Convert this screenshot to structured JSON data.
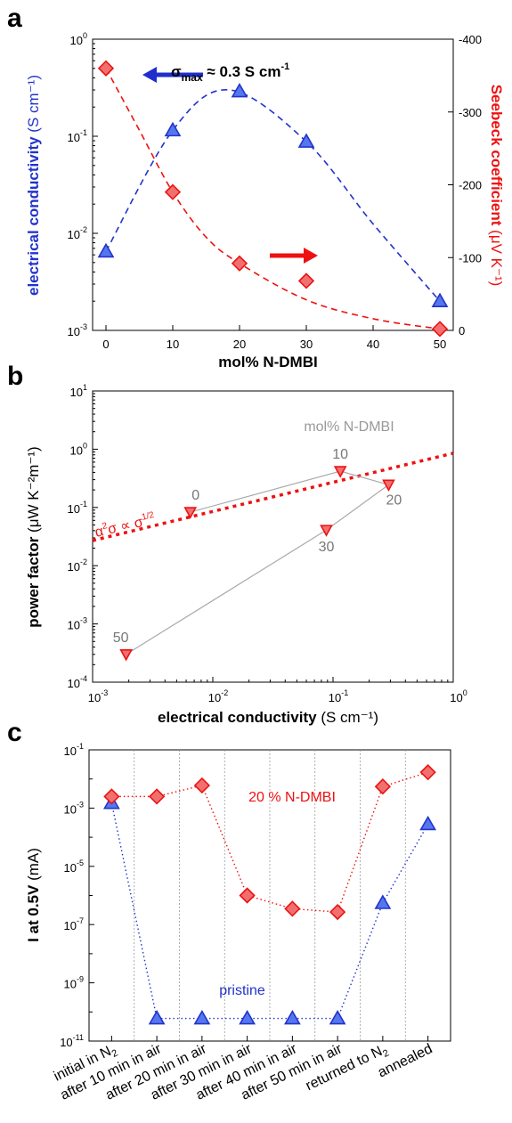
{
  "panels": {
    "a": "a",
    "b": "b",
    "c": "c"
  },
  "colors": {
    "blue": "#2233cc",
    "blue_fill": "#5577ee",
    "red": "#ee1111",
    "red_fill": "#f07070",
    "gray": "#999999",
    "grid": "#999999"
  },
  "chart_data": [
    {
      "type": "line",
      "panel": "a",
      "x": [
        0,
        10,
        20,
        30,
        50
      ],
      "xlabel": "mol% N-DMBI",
      "xlim": [
        -2,
        52
      ],
      "xticks": [
        "0",
        "10",
        "20",
        "30",
        "40",
        "50"
      ],
      "ylabel": {
        "bold": "electrical conductivity",
        "unit": "(S cm⁻¹)"
      },
      "ylim": [
        0.001,
        1
      ],
      "yscale": "log",
      "y2label": {
        "bold": "Seebeck coefficient",
        "unit": "(μV K⁻¹)"
      },
      "y2lim": [
        0,
        -400
      ],
      "y2ticks": [
        "0",
        "-100",
        "-200",
        "-300",
        "-400"
      ],
      "series": [
        {
          "axis": "left",
          "marker": "triangle",
          "values": [
            0.0065,
            0.115,
            0.29,
            0.088,
            0.002
          ]
        },
        {
          "axis": "right",
          "marker": "diamond",
          "values": [
            -360,
            -190,
            -92,
            -68,
            -2
          ]
        }
      ],
      "annotation": {
        "sigma": "σ",
        "sub": "max",
        "rest": " ≈ 0.3 S cm",
        "sup": "-1"
      }
    },
    {
      "type": "scatter",
      "panel": "b",
      "xlabel": {
        "bold": "electrical conductivity",
        "unit": "(S cm⁻¹)"
      },
      "xlim": [
        0.001,
        1
      ],
      "xscale": "log",
      "ylabel": {
        "bold": "power factor",
        "unit": "(μW K⁻²m⁻¹)"
      },
      "ylim": [
        0.0001,
        10
      ],
      "yscale": "log",
      "points": [
        {
          "label": "0",
          "x": 0.0065,
          "y": 0.083
        },
        {
          "label": "10",
          "x": 0.115,
          "y": 0.42
        },
        {
          "label": "20",
          "x": 0.29,
          "y": 0.245
        },
        {
          "label": "30",
          "x": 0.088,
          "y": 0.041
        },
        {
          "label": "50",
          "x": 0.0019,
          "y": 0.0003
        }
      ],
      "legend_title": "mol% N-DMBI",
      "fit_label": {
        "a": "α",
        "a_sup": "2",
        "mid": "σ ∝ σ",
        "sup": "1/2"
      }
    },
    {
      "type": "line",
      "panel": "c",
      "categories": [
        {
          "text": "initial in N",
          "sub": "2"
        },
        {
          "text": "after 10 min in air",
          "sub": ""
        },
        {
          "text": "after 20 min in air",
          "sub": ""
        },
        {
          "text": "after 30 min in air",
          "sub": ""
        },
        {
          "text": "after 40 min in air",
          "sub": ""
        },
        {
          "text": "after 50 min in air",
          "sub": ""
        },
        {
          "text": "returned to N",
          "sub": "2"
        },
        {
          "text": "annealed",
          "sub": ""
        }
      ],
      "ylabel": {
        "bold": "I at 0.5V",
        "unit": "(mA)"
      },
      "ylim": [
        1e-11,
        0.1
      ],
      "yscale": "log",
      "series": [
        {
          "name": "20 % N-DMBI",
          "marker": "diamond",
          "values": [
            0.0025,
            0.0025,
            0.006,
            1e-06,
            3.5e-07,
            2.7e-07,
            0.0055,
            0.017
          ]
        },
        {
          "name": "pristine",
          "marker": "triangle",
          "values": [
            0.0015,
            6e-11,
            6e-11,
            6e-11,
            6e-11,
            6e-11,
            5.5e-07,
            0.00028
          ]
        }
      ]
    }
  ]
}
